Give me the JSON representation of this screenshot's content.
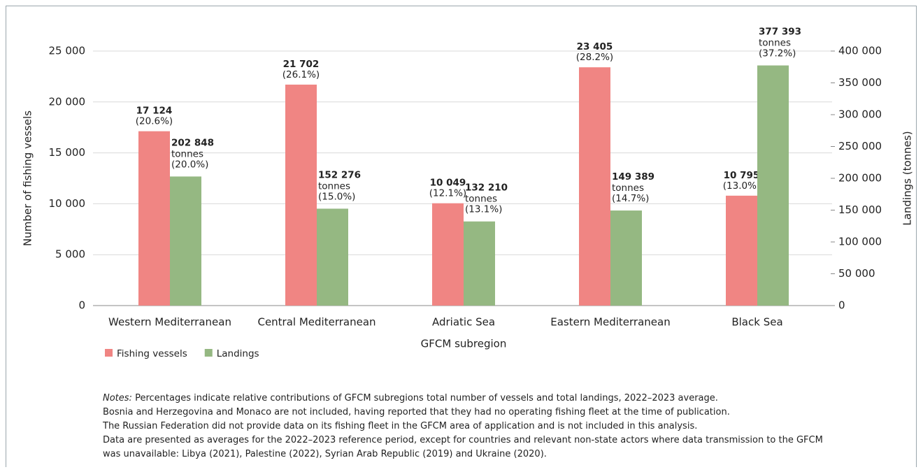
{
  "chart_data": {
    "type": "bar",
    "categories": [
      "Western Mediterranean",
      "Central Mediterranean",
      "Adriatic Sea",
      "Eastern Mediterranean",
      "Black Sea"
    ],
    "series": [
      {
        "name": "Fishing vessels",
        "color": "#f08583",
        "values": [
          17124,
          21702,
          10049,
          23405,
          10795
        ],
        "value_labels": [
          "17 124",
          "21 702",
          "10 049",
          "23 405",
          "10 795"
        ],
        "share_labels": [
          "(20.6%)",
          "(26.1%)",
          "(12.1%)",
          "(28.2%)",
          "(13.0%)"
        ]
      },
      {
        "name": "Landings",
        "color": "#95b882",
        "axis": "y2",
        "values": [
          202848,
          152276,
          132210,
          149389,
          377393
        ],
        "value_labels": [
          "202 848",
          "152 276",
          "132 210",
          "149 389",
          "377 393"
        ],
        "unit_label": "tonnes",
        "share_labels": [
          "(20.0%)",
          "(15.0%)",
          "(13.1%)",
          "(14.7%)",
          "(37.2%)"
        ]
      }
    ],
    "xlabel": "GFCM subregion",
    "ylabel": "Number of fishing vessels",
    "y2label": "Landings (tonnes)",
    "ylim": [
      0,
      25000
    ],
    "yticks": [
      0,
      {
        "value": 5000,
        "label": "5 000"
      },
      {
        "value": 10000,
        "label": "10 000"
      },
      {
        "value": 15000,
        "label": "15 000"
      },
      {
        "value": 20000,
        "label": "20 000"
      },
      {
        "value": 25000,
        "label": "25 000"
      }
    ],
    "y2lim": [
      0,
      400000
    ],
    "y2ticks": [
      0,
      {
        "value": 50000,
        "label": "50 000"
      },
      {
        "value": 100000,
        "label": "100 000"
      },
      {
        "value": 150000,
        "label": "150 000"
      },
      {
        "value": 200000,
        "label": "200 000"
      },
      {
        "value": 250000,
        "label": "250 000"
      },
      {
        "value": 300000,
        "label": "300 000"
      },
      {
        "value": 350000,
        "label": "350 000"
      },
      {
        "value": 400000,
        "label": "400 000"
      }
    ],
    "grid": true,
    "legend": "bottom-left"
  },
  "notes": {
    "label": "Notes:",
    "first": " Percentages indicate relative contributions of GFCM subregions total number of vessels and total landings, 2022–2023 average.",
    "lines": [
      "Bosnia and Herzegovina and Monaco are not included, having reported that they had no operating fishing fleet at the time of publication.",
      "The Russian Federation did not provide data on its fishing fleet in the GFCM area of application and is not included in this analysis.",
      "Data are presented as averages for the 2022–2023 reference period, except for countries and relevant non-state actors where data transmission to the GFCM was unavailable: Libya (2021), Palestine (2022), Syrian Arab Republic (2019) and Ukraine (2020)."
    ]
  }
}
